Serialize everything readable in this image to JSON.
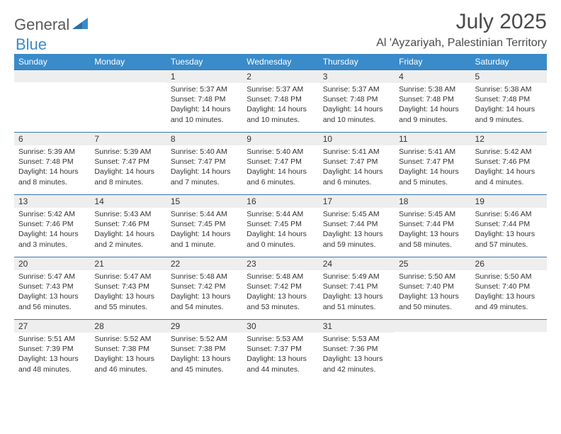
{
  "brand": {
    "text1": "General",
    "text2": "Blue"
  },
  "title": "July 2025",
  "location": "Al 'Ayzariyah, Palestinian Territory",
  "colors": {
    "header_bg": "#3a8bc9",
    "header_text": "#ffffff",
    "date_row_bg": "#eeeeee",
    "border": "#3a78a8",
    "body_text": "#333333",
    "logo_gray": "#5a5a5a",
    "logo_blue": "#3a8bc9",
    "page_bg": "#ffffff"
  },
  "typography": {
    "month_title_fontsize": 30,
    "location_fontsize": 16,
    "day_header_fontsize": 12,
    "date_fontsize": 12,
    "info_fontsize": 10.5,
    "font_family": "Arial"
  },
  "day_names": [
    "Sunday",
    "Monday",
    "Tuesday",
    "Wednesday",
    "Thursday",
    "Friday",
    "Saturday"
  ],
  "weeks": [
    [
      null,
      null,
      {
        "date": "1",
        "sunrise": "5:37 AM",
        "sunset": "7:48 PM",
        "daylight": "14 hours and 10 minutes."
      },
      {
        "date": "2",
        "sunrise": "5:37 AM",
        "sunset": "7:48 PM",
        "daylight": "14 hours and 10 minutes."
      },
      {
        "date": "3",
        "sunrise": "5:37 AM",
        "sunset": "7:48 PM",
        "daylight": "14 hours and 10 minutes."
      },
      {
        "date": "4",
        "sunrise": "5:38 AM",
        "sunset": "7:48 PM",
        "daylight": "14 hours and 9 minutes."
      },
      {
        "date": "5",
        "sunrise": "5:38 AM",
        "sunset": "7:48 PM",
        "daylight": "14 hours and 9 minutes."
      }
    ],
    [
      {
        "date": "6",
        "sunrise": "5:39 AM",
        "sunset": "7:48 PM",
        "daylight": "14 hours and 8 minutes."
      },
      {
        "date": "7",
        "sunrise": "5:39 AM",
        "sunset": "7:47 PM",
        "daylight": "14 hours and 8 minutes."
      },
      {
        "date": "8",
        "sunrise": "5:40 AM",
        "sunset": "7:47 PM",
        "daylight": "14 hours and 7 minutes."
      },
      {
        "date": "9",
        "sunrise": "5:40 AM",
        "sunset": "7:47 PM",
        "daylight": "14 hours and 6 minutes."
      },
      {
        "date": "10",
        "sunrise": "5:41 AM",
        "sunset": "7:47 PM",
        "daylight": "14 hours and 6 minutes."
      },
      {
        "date": "11",
        "sunrise": "5:41 AM",
        "sunset": "7:47 PM",
        "daylight": "14 hours and 5 minutes."
      },
      {
        "date": "12",
        "sunrise": "5:42 AM",
        "sunset": "7:46 PM",
        "daylight": "14 hours and 4 minutes."
      }
    ],
    [
      {
        "date": "13",
        "sunrise": "5:42 AM",
        "sunset": "7:46 PM",
        "daylight": "14 hours and 3 minutes."
      },
      {
        "date": "14",
        "sunrise": "5:43 AM",
        "sunset": "7:46 PM",
        "daylight": "14 hours and 2 minutes."
      },
      {
        "date": "15",
        "sunrise": "5:44 AM",
        "sunset": "7:45 PM",
        "daylight": "14 hours and 1 minute."
      },
      {
        "date": "16",
        "sunrise": "5:44 AM",
        "sunset": "7:45 PM",
        "daylight": "14 hours and 0 minutes."
      },
      {
        "date": "17",
        "sunrise": "5:45 AM",
        "sunset": "7:44 PM",
        "daylight": "13 hours and 59 minutes."
      },
      {
        "date": "18",
        "sunrise": "5:45 AM",
        "sunset": "7:44 PM",
        "daylight": "13 hours and 58 minutes."
      },
      {
        "date": "19",
        "sunrise": "5:46 AM",
        "sunset": "7:44 PM",
        "daylight": "13 hours and 57 minutes."
      }
    ],
    [
      {
        "date": "20",
        "sunrise": "5:47 AM",
        "sunset": "7:43 PM",
        "daylight": "13 hours and 56 minutes."
      },
      {
        "date": "21",
        "sunrise": "5:47 AM",
        "sunset": "7:43 PM",
        "daylight": "13 hours and 55 minutes."
      },
      {
        "date": "22",
        "sunrise": "5:48 AM",
        "sunset": "7:42 PM",
        "daylight": "13 hours and 54 minutes."
      },
      {
        "date": "23",
        "sunrise": "5:48 AM",
        "sunset": "7:42 PM",
        "daylight": "13 hours and 53 minutes."
      },
      {
        "date": "24",
        "sunrise": "5:49 AM",
        "sunset": "7:41 PM",
        "daylight": "13 hours and 51 minutes."
      },
      {
        "date": "25",
        "sunrise": "5:50 AM",
        "sunset": "7:40 PM",
        "daylight": "13 hours and 50 minutes."
      },
      {
        "date": "26",
        "sunrise": "5:50 AM",
        "sunset": "7:40 PM",
        "daylight": "13 hours and 49 minutes."
      }
    ],
    [
      {
        "date": "27",
        "sunrise": "5:51 AM",
        "sunset": "7:39 PM",
        "daylight": "13 hours and 48 minutes."
      },
      {
        "date": "28",
        "sunrise": "5:52 AM",
        "sunset": "7:38 PM",
        "daylight": "13 hours and 46 minutes."
      },
      {
        "date": "29",
        "sunrise": "5:52 AM",
        "sunset": "7:38 PM",
        "daylight": "13 hours and 45 minutes."
      },
      {
        "date": "30",
        "sunrise": "5:53 AM",
        "sunset": "7:37 PM",
        "daylight": "13 hours and 44 minutes."
      },
      {
        "date": "31",
        "sunrise": "5:53 AM",
        "sunset": "7:36 PM",
        "daylight": "13 hours and 42 minutes."
      },
      null,
      null
    ]
  ],
  "labels": {
    "sunrise_prefix": "Sunrise: ",
    "sunset_prefix": "Sunset: ",
    "daylight_prefix": "Daylight: "
  }
}
